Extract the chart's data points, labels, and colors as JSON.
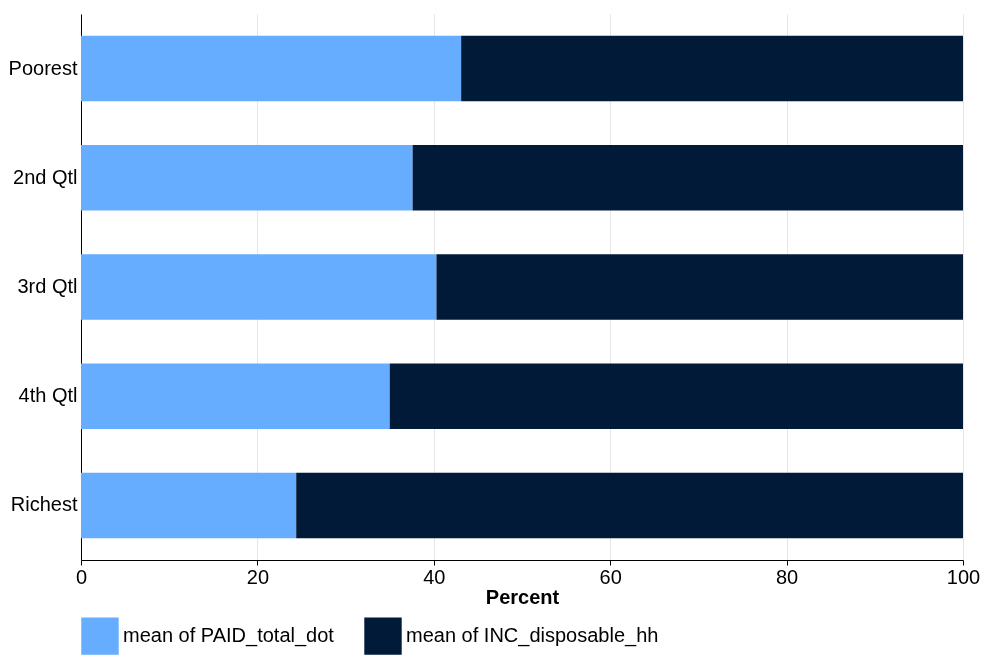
{
  "chart_data": {
    "type": "bar",
    "orientation": "horizontal",
    "stacked": true,
    "categories": [
      "Poorest",
      "2nd Qtl",
      "3rd Qtl",
      "4th Qtl",
      "Richest"
    ],
    "series": [
      {
        "name": "mean of PAID_total_dot",
        "color": "#66adff",
        "values": [
          43.1,
          37.6,
          40.3,
          35.0,
          24.4
        ]
      },
      {
        "name": "mean of INC_disposable_hh",
        "color": "#001a38",
        "values": [
          56.9,
          62.4,
          59.7,
          65.0,
          75.6
        ]
      }
    ],
    "xlabel": "Percent",
    "xlim": [
      0,
      100
    ],
    "xticks": [
      0,
      20,
      40,
      60,
      80,
      100
    ],
    "grid": "x",
    "legend": "bottom"
  }
}
